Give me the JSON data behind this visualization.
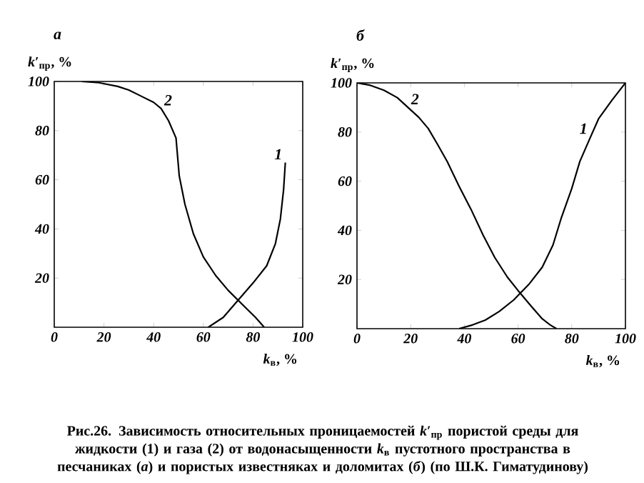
{
  "chart_data": [
    {
      "type": "line",
      "title": "*а*",
      "xlabel": "*k*$_{в}$, %",
      "ylabel": "*k*′$_{пр}$, %",
      "xlim": [
        0,
        100
      ],
      "ylim": [
        0,
        100
      ],
      "xticks": [
        0,
        20,
        40,
        60,
        80,
        100
      ],
      "yticks": [
        20,
        40,
        60,
        80,
        100
      ],
      "series": [
        {
          "name": "1",
          "color": "#000000",
          "x": [
            62,
            68,
            74,
            80,
            85.5,
            89,
            91,
            92.3,
            93
          ],
          "values": [
            0,
            4,
            11,
            18,
            25,
            34,
            44,
            56,
            67
          ]
        },
        {
          "name": "2",
          "color": "#000000",
          "x": [
            11,
            18,
            25.5,
            30,
            35,
            40,
            43,
            46,
            49,
            50.3,
            52.6,
            56,
            60,
            65,
            70,
            74,
            78,
            81,
            84.5
          ],
          "values": [
            100,
            99.5,
            98,
            96.5,
            94,
            91.5,
            89,
            84,
            77,
            61.6,
            50,
            38,
            28.6,
            21,
            15,
            11,
            7,
            4,
            0
          ]
        }
      ]
    },
    {
      "type": "line",
      "title": "*б*",
      "xlabel": "*k*$_{в}$, %",
      "ylabel": "*k*′$_{пр}$, %",
      "xlim": [
        0,
        100
      ],
      "ylim": [
        0,
        100
      ],
      "xticks": [
        0,
        20,
        40,
        60,
        80,
        100
      ],
      "yticks": [
        20,
        40,
        60,
        80,
        100
      ],
      "series": [
        {
          "name": "1",
          "color": "#000000",
          "x": [
            38,
            43,
            47.8,
            53,
            58.4,
            64,
            69,
            73,
            76,
            80,
            83,
            87,
            90,
            95,
            100
          ],
          "values": [
            0,
            1.5,
            3.5,
            7,
            11.7,
            18,
            25,
            34,
            44.7,
            57,
            68,
            78,
            85.4,
            93,
            100
          ]
        },
        {
          "name": "2",
          "color": "#000000",
          "x": [
            0,
            5,
            10,
            15,
            19,
            23,
            26.5,
            30,
            33.6,
            38,
            42.5,
            47,
            51.3,
            56,
            60,
            65,
            69,
            72,
            74.3
          ],
          "values": [
            100,
            99,
            97,
            94,
            90,
            86,
            81.5,
            75,
            68,
            58,
            48.5,
            38,
            29,
            21,
            15.5,
            9,
            4,
            1.5,
            0
          ]
        }
      ],
      "annotations": [
        "**Рис.26. Зависимость относительных проницаемостей *k*′$_{пр}$ пористой среды для жидкости (1) и газа (2) от водонасыщенности *k*$_{в}$ пустотного пространства в песчаниках (*а*) и пористых известняках и доломитах (*б*) (по Ш.К. Гиматудинову)**"
      ]
    }
  ]
}
